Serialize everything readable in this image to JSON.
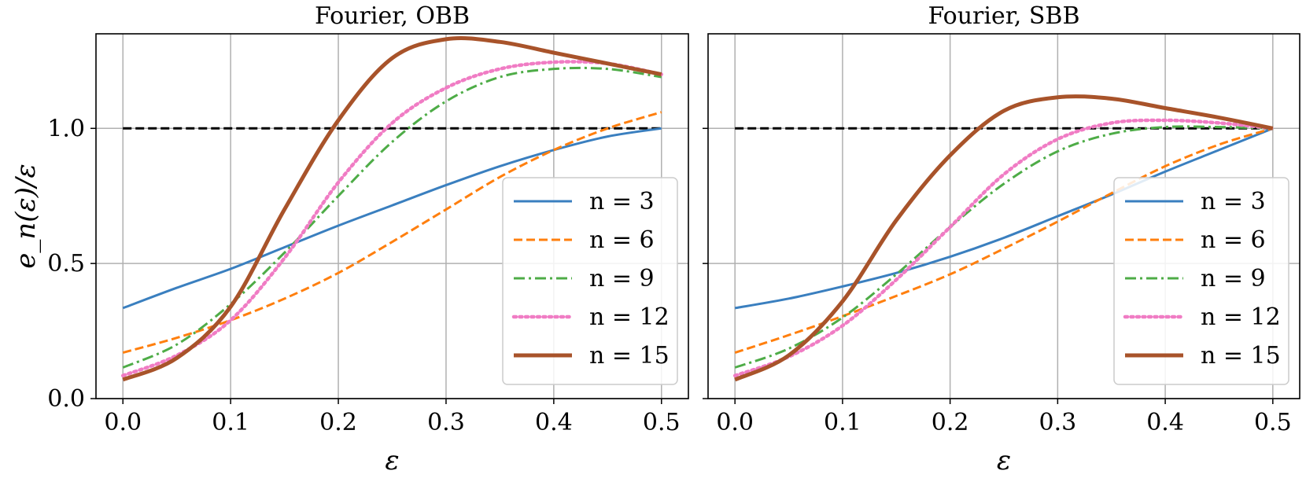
{
  "chart_data": [
    {
      "type": "line",
      "title": "Fourier, OBB",
      "xlabel": "ε",
      "ylabel": "e_n(ε)/ε",
      "xlim": [
        -0.025,
        0.525
      ],
      "ylim": [
        0.0,
        1.35
      ],
      "xticks": [
        0.0,
        0.1,
        0.2,
        0.3,
        0.4,
        0.5
      ],
      "xtick_labels": [
        "0.0",
        "0.1",
        "0.2",
        "0.3",
        "0.4",
        "0.5"
      ],
      "yticks": [
        0.0,
        0.5,
        1.0
      ],
      "ytick_labels": [
        "0.0",
        "0.5",
        "1.0"
      ],
      "grid": true,
      "legend_position": "lower-right",
      "reference_line": {
        "y": 1.0,
        "style": "dashed",
        "color": "#000000"
      },
      "series": [
        {
          "name": "n = 3",
          "n": "3",
          "color": "#3a7fbf",
          "style": "solid",
          "x": [
            0.0,
            0.05,
            0.1,
            0.15,
            0.2,
            0.25,
            0.3,
            0.35,
            0.4,
            0.45,
            0.5
          ],
          "y": [
            0.335,
            0.41,
            0.48,
            0.56,
            0.64,
            0.715,
            0.79,
            0.86,
            0.92,
            0.97,
            1.0
          ]
        },
        {
          "name": "n = 6",
          "n": "6",
          "color": "#ff7f0e",
          "style": "dashed",
          "x": [
            0.0,
            0.05,
            0.1,
            0.15,
            0.2,
            0.25,
            0.3,
            0.35,
            0.4,
            0.45,
            0.5
          ],
          "y": [
            0.17,
            0.225,
            0.29,
            0.37,
            0.465,
            0.58,
            0.7,
            0.82,
            0.92,
            1.0,
            1.06
          ]
        },
        {
          "name": "n = 9",
          "n": "9",
          "color": "#4eac47",
          "style": "dashdot",
          "x": [
            0.0,
            0.05,
            0.1,
            0.15,
            0.2,
            0.25,
            0.3,
            0.35,
            0.4,
            0.45,
            0.5
          ],
          "y": [
            0.115,
            0.2,
            0.35,
            0.54,
            0.75,
            0.95,
            1.1,
            1.19,
            1.22,
            1.22,
            1.19
          ]
        },
        {
          "name": "n = 12",
          "n": "12",
          "color": "#f07cc4",
          "style": "dotted",
          "x": [
            0.0,
            0.05,
            0.1,
            0.15,
            0.2,
            0.25,
            0.3,
            0.35,
            0.4,
            0.45,
            0.5
          ],
          "y": [
            0.085,
            0.16,
            0.29,
            0.52,
            0.8,
            1.02,
            1.15,
            1.22,
            1.245,
            1.24,
            1.2
          ]
        },
        {
          "name": "n = 15",
          "n": "15",
          "color": "#a8532a",
          "style": "solid-thick",
          "x": [
            0.0,
            0.05,
            0.1,
            0.15,
            0.2,
            0.25,
            0.3,
            0.35,
            0.4,
            0.45,
            0.5
          ],
          "y": [
            0.07,
            0.15,
            0.34,
            0.7,
            1.03,
            1.26,
            1.33,
            1.32,
            1.28,
            1.24,
            1.2
          ]
        }
      ]
    },
    {
      "type": "line",
      "title": "Fourier, SBB",
      "xlabel": "ε",
      "ylabel": "",
      "xlim": [
        -0.025,
        0.525
      ],
      "ylim": [
        0.0,
        1.35
      ],
      "xticks": [
        0.0,
        0.1,
        0.2,
        0.3,
        0.4,
        0.5
      ],
      "xtick_labels": [
        "0.0",
        "0.1",
        "0.2",
        "0.3",
        "0.4",
        "0.5"
      ],
      "yticks": [
        0.0,
        0.5,
        1.0
      ],
      "ytick_labels": [],
      "grid": true,
      "legend_position": "lower-right",
      "reference_line": {
        "y": 1.0,
        "style": "dashed",
        "color": "#000000"
      },
      "series": [
        {
          "name": "n = 3",
          "n": "3",
          "color": "#3a7fbf",
          "style": "solid",
          "x": [
            0.0,
            0.05,
            0.1,
            0.15,
            0.2,
            0.25,
            0.3,
            0.35,
            0.4,
            0.45,
            0.5
          ],
          "y": [
            0.335,
            0.37,
            0.415,
            0.465,
            0.525,
            0.595,
            0.675,
            0.755,
            0.84,
            0.92,
            1.0
          ]
        },
        {
          "name": "n = 6",
          "n": "6",
          "color": "#ff7f0e",
          "style": "dashed",
          "x": [
            0.0,
            0.05,
            0.1,
            0.15,
            0.2,
            0.25,
            0.3,
            0.35,
            0.4,
            0.45,
            0.5
          ],
          "y": [
            0.17,
            0.235,
            0.305,
            0.38,
            0.46,
            0.555,
            0.655,
            0.76,
            0.86,
            0.94,
            1.0
          ]
        },
        {
          "name": "n = 9",
          "n": "9",
          "color": "#4eac47",
          "style": "dashdot",
          "x": [
            0.0,
            0.05,
            0.1,
            0.15,
            0.2,
            0.25,
            0.3,
            0.35,
            0.4,
            0.45,
            0.5
          ],
          "y": [
            0.115,
            0.185,
            0.3,
            0.46,
            0.635,
            0.795,
            0.915,
            0.98,
            1.005,
            1.005,
            1.0
          ]
        },
        {
          "name": "n = 12",
          "n": "12",
          "color": "#f07cc4",
          "style": "dotted",
          "x": [
            0.0,
            0.05,
            0.1,
            0.15,
            0.2,
            0.25,
            0.3,
            0.35,
            0.4,
            0.45,
            0.5
          ],
          "y": [
            0.085,
            0.155,
            0.27,
            0.44,
            0.635,
            0.83,
            0.96,
            1.02,
            1.03,
            1.02,
            1.0
          ]
        },
        {
          "name": "n = 15",
          "n": "15",
          "color": "#a8532a",
          "style": "solid-thick",
          "x": [
            0.0,
            0.05,
            0.1,
            0.15,
            0.2,
            0.25,
            0.3,
            0.35,
            0.4,
            0.45,
            0.5
          ],
          "y": [
            0.07,
            0.16,
            0.36,
            0.66,
            0.9,
            1.065,
            1.115,
            1.11,
            1.075,
            1.04,
            1.0
          ]
        }
      ]
    }
  ]
}
